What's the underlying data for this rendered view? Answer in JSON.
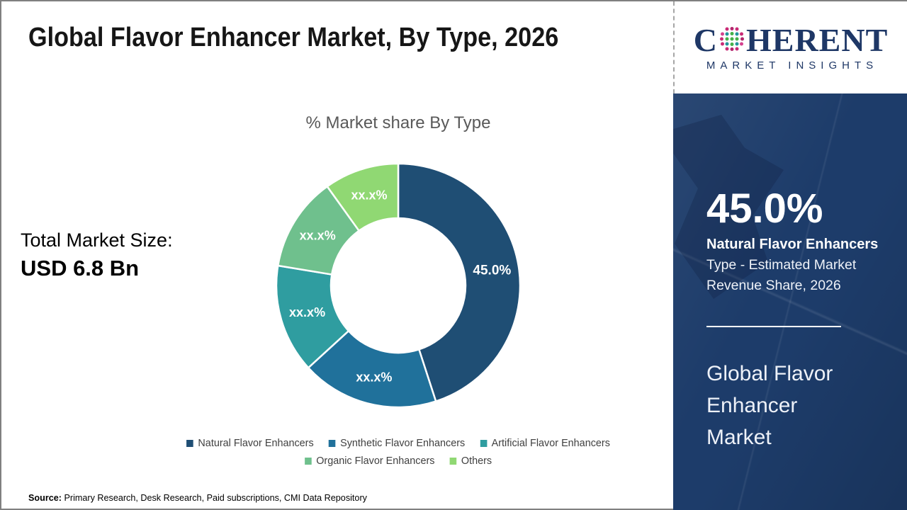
{
  "header": {
    "title": "Global Flavor Enhancer Market, By Type, 2026"
  },
  "logo": {
    "brand_c": "C",
    "brand_rest": "HERENT",
    "subtitle": "MARKET INSIGHTS"
  },
  "main": {
    "chart_title": "% Market share By Type",
    "total_label": "Total Market Size:",
    "total_value": "USD 6.8 Bn"
  },
  "sidebar": {
    "highlight_value": "45.0%",
    "highlight_label": "Natural Flavor Enhancers",
    "highlight_desc": "Type - Estimated Market Revenue Share, 2026",
    "report_title": "Global Flavor Enhancer Market"
  },
  "source": {
    "label": "Source:",
    "text": " Primary Research, Desk Research, Paid subscriptions, CMI Data Repository"
  },
  "chart_data": {
    "type": "pie",
    "subtype": "donut",
    "title": "% Market share By Type",
    "categories": [
      "Natural Flavor Enhancers",
      "Synthetic Flavor Enhancers",
      "Artificial Flavor Enhancers",
      "Organic Flavor Enhancers",
      "Others"
    ],
    "values": [
      45.0,
      18.2,
      14.4,
      12.5,
      9.9
    ],
    "value_labels": [
      "45.0%",
      "xx.x%",
      "xx.x%",
      "xx.x%",
      "xx.x%"
    ],
    "colors": [
      "#1f4e74",
      "#20719b",
      "#2f9da0",
      "#6fc08d",
      "#90d873"
    ],
    "start_angle_deg": 0,
    "direction": "clockwise",
    "inner_radius_ratio": 0.55,
    "legend_position": "bottom"
  }
}
